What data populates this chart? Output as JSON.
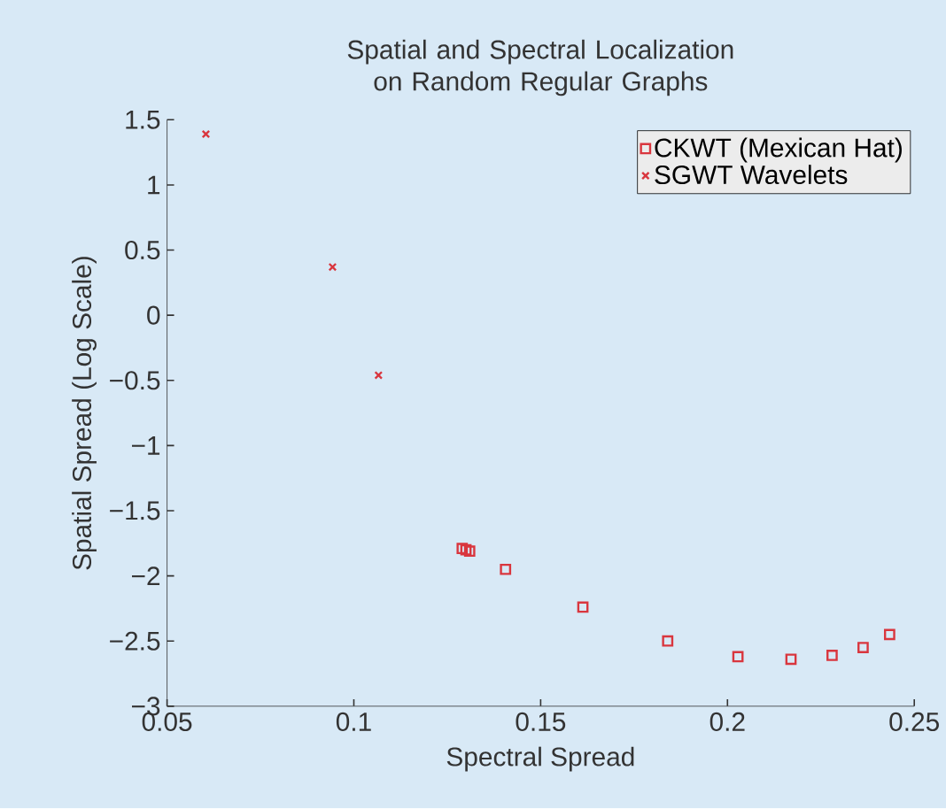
{
  "chart_data": {
    "type": "scatter",
    "title": "Spatial and Spectral Localization on Random Regular Graphs",
    "xlabel": "Spectral Spread",
    "ylabel": "Spatial Spread (Log Scale)",
    "xlim": [
      0.05,
      0.25
    ],
    "xticks": [
      0.05,
      0.1,
      0.15,
      0.2,
      0.25
    ],
    "ylim": [
      -3,
      1.5
    ],
    "yticks": [
      {
        "value": -3,
        "label": "−3"
      },
      {
        "value": -2.5,
        "label": "−2.5"
      },
      {
        "value": -2,
        "label": "−2"
      },
      {
        "value": -1.5,
        "label": "−1.5"
      },
      {
        "value": -1,
        "label": "−1"
      },
      {
        "value": -0.5,
        "label": "−0.5"
      },
      0,
      0.5,
      1,
      1.5
    ],
    "legend": "top right",
    "grid": false,
    "series": [
      {
        "name": "CKWT (Mexican Hat)",
        "color": "#d9363e",
        "marker": "square",
        "x": [
          0.129,
          0.13,
          0.131,
          0.1406,
          0.1613,
          0.184,
          0.2028,
          0.217,
          0.228,
          0.2363,
          0.2434
        ],
        "values": [
          -1.79,
          -1.8,
          -1.81,
          -1.95,
          -2.24,
          -2.5,
          -2.62,
          -2.64,
          -2.61,
          -2.55,
          -2.45
        ]
      },
      {
        "name": "SGWT Wavelets",
        "color": "#d9363e",
        "marker": "cross",
        "x": [
          0.0604,
          0.0943,
          0.1066
        ],
        "values": [
          1.39,
          0.37,
          -0.46
        ]
      }
    ]
  }
}
